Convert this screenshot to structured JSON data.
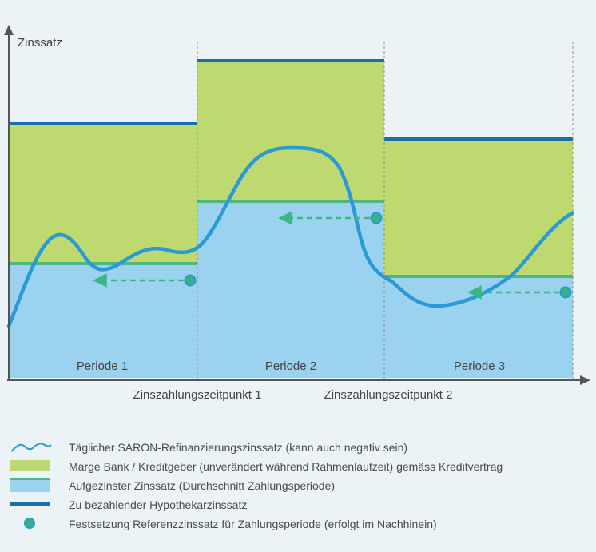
{
  "colors": {
    "background": "#ebf3f7",
    "margin_fill": "#bdd970",
    "average_fill": "#9bd2ef",
    "average_line": "#4db780",
    "mortgage_line": "#1670a7",
    "saron_curve": "#2a9ad6",
    "arrow": "#3cb783",
    "axis": "#555555"
  },
  "diagram": {
    "ylabel": "Zinssatz",
    "periods": [
      {
        "label": "Periode 1",
        "mortgage_rate": 2.98,
        "average_rate": 1.35
      },
      {
        "label": "Periode 2",
        "mortgage_rate": 3.75,
        "average_rate": 2.1
      },
      {
        "label": "Periode 3",
        "mortgage_rate": 2.8,
        "average_rate": 1.2
      }
    ],
    "payment_dates": [
      {
        "label": "Zinszahlungszeitpunkt 1"
      },
      {
        "label": "Zinszahlungszeitpunkt 2"
      }
    ]
  },
  "legend": [
    {
      "icon": "saron-curve-icon",
      "text": "Täglicher SARON-Refinanzierungszinssatz (kann auch negativ sein)"
    },
    {
      "icon": "margin-swatch-icon",
      "text": "Marge Bank / Kreditgeber (unverändert während Rahmenlaufzeit) gemäss Kreditvertrag"
    },
    {
      "icon": "average-rate-swatch-icon",
      "text": "Aufgezinster Zinssatz (Durchschnitt Zahlungsperiode)"
    },
    {
      "icon": "mortgage-rate-line-icon",
      "text": "Zu bezahlender Hypothekarzinssatz"
    },
    {
      "icon": "fixing-dot-icon",
      "text": "Festsetzung Referenzzinssatz für Zahlungsperiode (erfolgt im Nachhinein)"
    }
  ]
}
